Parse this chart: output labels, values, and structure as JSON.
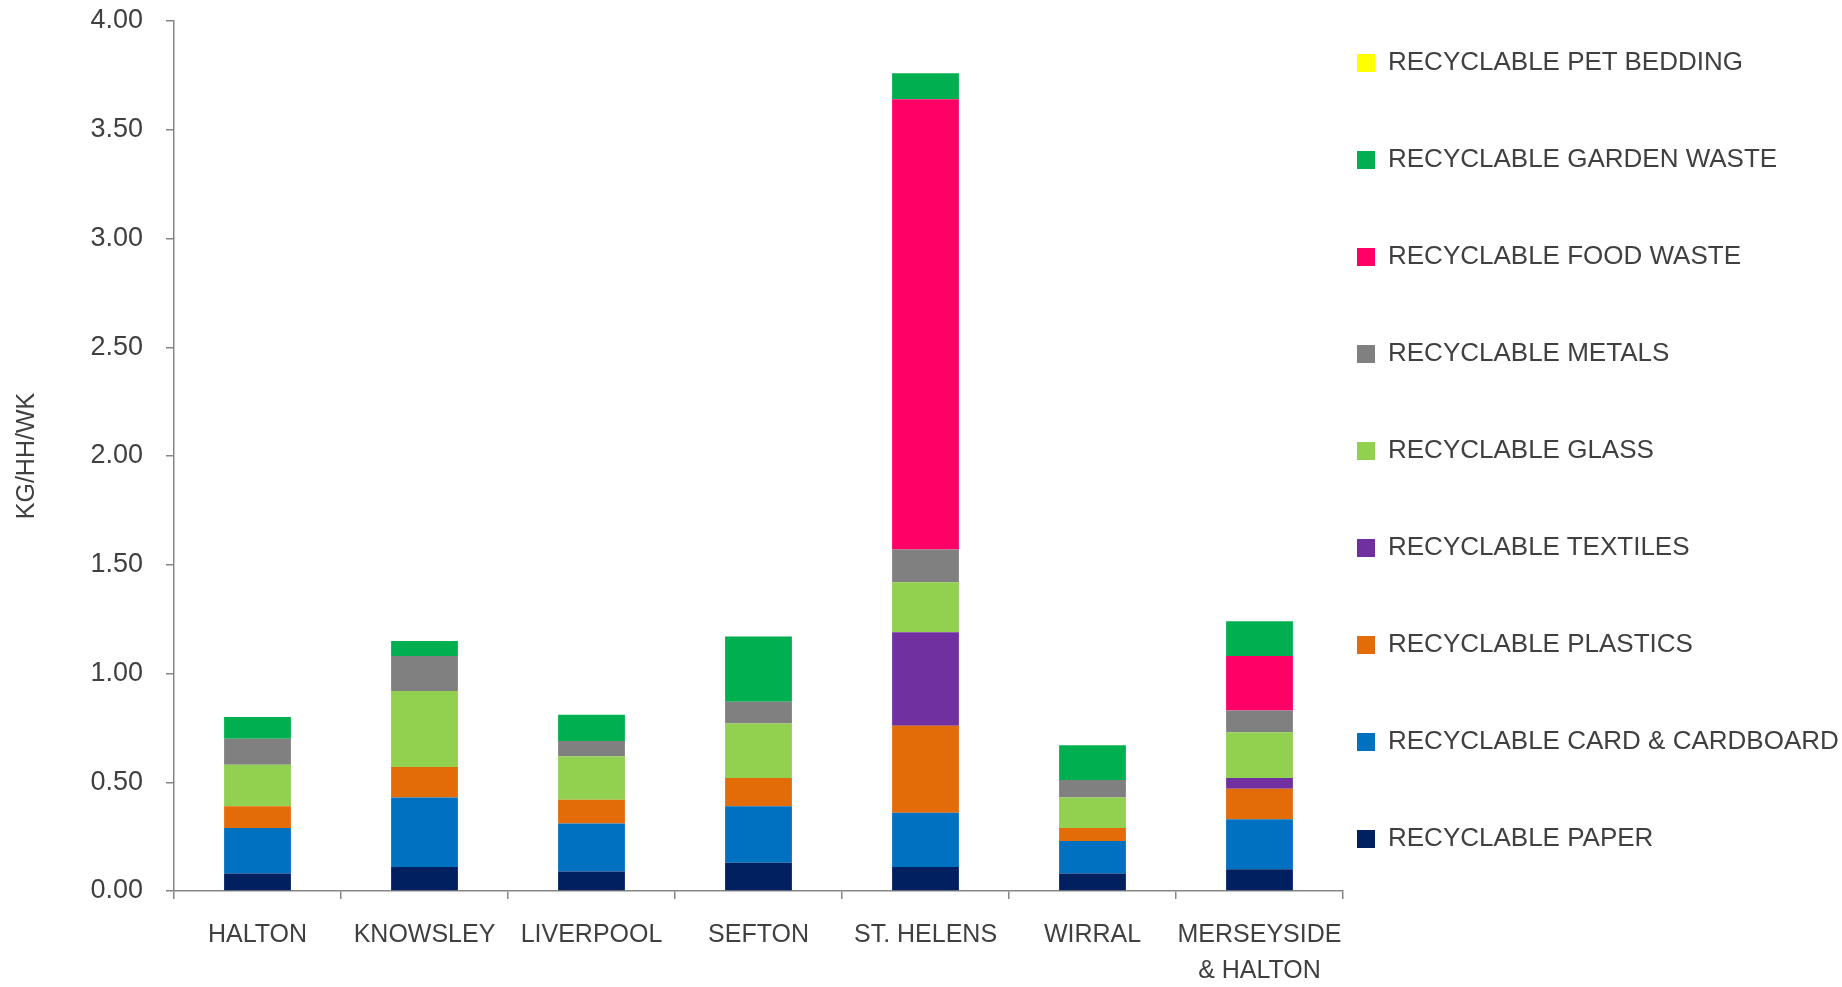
{
  "chart_data": {
    "type": "bar",
    "stacked": true,
    "ylabel": "KG/HH/WK",
    "legend": "right",
    "categories": [
      "HALTON",
      "KNOWSLEY",
      "LIVERPOOL",
      "SEFTON",
      "ST. HELENS",
      "WIRRAL",
      "MERSEYSIDE & HALTON"
    ],
    "series": [
      {
        "name": "RECYCLABLE PAPER",
        "color": "#002060",
        "values": [
          0.08,
          0.11,
          0.09,
          0.13,
          0.11,
          0.08,
          0.1
        ]
      },
      {
        "name": "RECYCLABLE CARD & CARDBOARD",
        "color": "#0070c0",
        "values": [
          0.21,
          0.32,
          0.22,
          0.26,
          0.25,
          0.15,
          0.23
        ]
      },
      {
        "name": "RECYCLABLE PLASTICS",
        "color": "#e36c09",
        "values": [
          0.1,
          0.14,
          0.11,
          0.13,
          0.4,
          0.06,
          0.14
        ]
      },
      {
        "name": "RECYCLABLE TEXTILES",
        "color": "#7030a0",
        "values": [
          null,
          null,
          null,
          null,
          0.43,
          null,
          0.05
        ]
      },
      {
        "name": "RECYCLABLE GLASS",
        "color": "#92d050",
        "values": [
          0.19,
          0.35,
          0.2,
          0.25,
          0.23,
          0.14,
          0.21
        ]
      },
      {
        "name": "RECYCLABLE METALS",
        "color": "#808080",
        "values": [
          0.12,
          0.16,
          0.07,
          0.1,
          0.15,
          0.08,
          0.1
        ]
      },
      {
        "name": "RECYCLABLE FOOD WASTE",
        "color": "#ff0066",
        "values": [
          null,
          null,
          null,
          null,
          2.07,
          null,
          0.25
        ]
      },
      {
        "name": "RECYCLABLE GARDEN WASTE",
        "color": "#00b050",
        "values": [
          0.1,
          0.07,
          0.12,
          0.3,
          0.12,
          0.16,
          0.16
        ]
      },
      {
        "name": "RECYCLABLE PET BEDDING",
        "color": "#ffff00",
        "values": [
          null,
          null,
          null,
          null,
          null,
          null,
          null
        ]
      }
    ],
    "ylim": [
      0,
      4
    ],
    "yticks": [
      {
        "value": 0,
        "label": "0.00"
      },
      {
        "value": 0.5,
        "label": "0.50"
      },
      {
        "value": 1,
        "label": "1.00"
      },
      {
        "value": 1.5,
        "label": "1.50"
      },
      {
        "value": 2,
        "label": "2.00"
      },
      {
        "value": 2.5,
        "label": "2.50"
      },
      {
        "value": 3,
        "label": "3.00"
      },
      {
        "value": 3.5,
        "label": "3.50"
      },
      {
        "value": 4,
        "label": "4.00"
      }
    ]
  }
}
